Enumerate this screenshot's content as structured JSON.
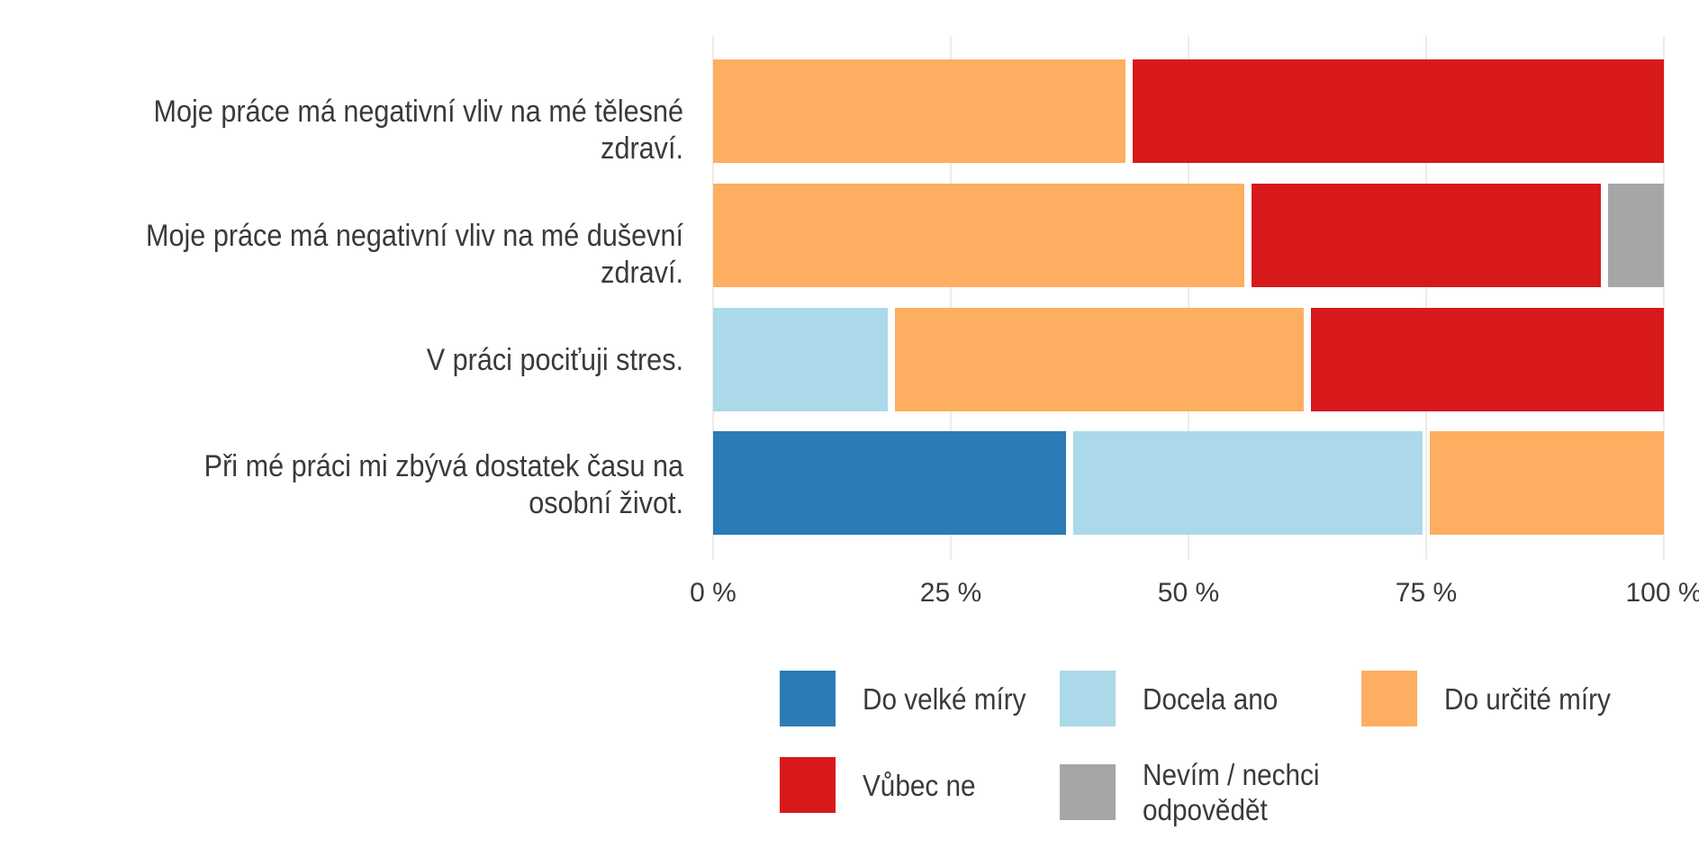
{
  "chart_data": {
    "type": "bar",
    "orientation": "horizontal",
    "stacked": true,
    "categories": [
      "Moje práce má negativní vliv na mé tělesné zdraví.",
      "Moje práce má negativní vliv na mé duševní zdraví.",
      "V práci pociťuji stres.",
      "Při mé práci mi zbývá dostatek času na osobní život."
    ],
    "series": [
      {
        "name": "Do velké míry",
        "color": "#2c7bb6",
        "values": [
          0,
          0,
          0,
          37.5
        ]
      },
      {
        "name": "Docela ano",
        "color": "#abd9e9",
        "values": [
          0,
          0,
          18.75,
          37.5
        ]
      },
      {
        "name": "Do určité míry",
        "color": "#fdae61",
        "values": [
          43.75,
          56.25,
          43.75,
          25
        ]
      },
      {
        "name": "Vůbec ne",
        "color": "#d7191c",
        "values": [
          56.25,
          37.5,
          37.5,
          0
        ]
      },
      {
        "name": "Nevím / nechci odpovědět",
        "color": "#a6a6a6",
        "values": [
          0,
          6.25,
          0,
          0
        ]
      }
    ],
    "xlim": [
      0,
      100
    ],
    "xticks": [
      "0 %",
      "25 %",
      "50 %",
      "75 %",
      "100 %"
    ],
    "title": "",
    "xlabel": "",
    "ylabel": "",
    "grid": true,
    "legend_position": "bottom"
  }
}
